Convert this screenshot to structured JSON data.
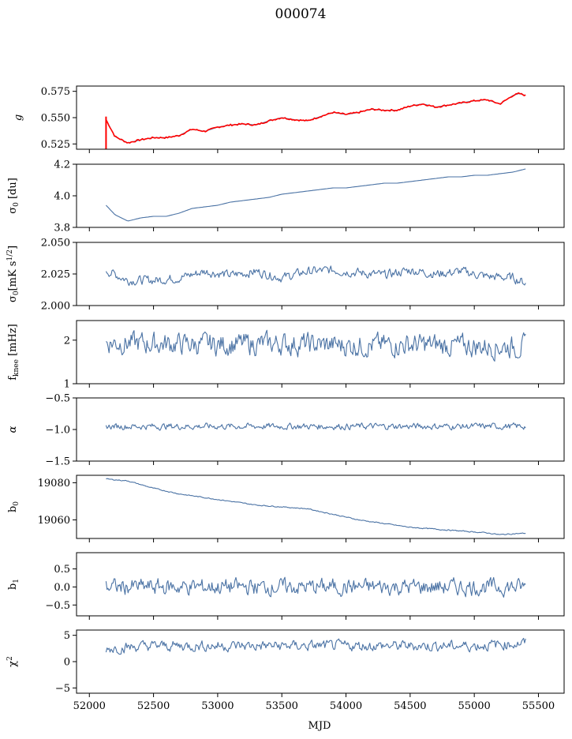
{
  "figure": {
    "title": "000074",
    "xlabel": "MJD"
  },
  "chart_data": {
    "type": "line",
    "title": "000074",
    "xlabel": "MJD",
    "xlim": [
      51900,
      55700
    ],
    "xticks": [
      52000,
      52500,
      53000,
      53500,
      54000,
      54500,
      55000,
      55500
    ],
    "x_range": [
      52130,
      55400
    ],
    "colors": {
      "series": "#4a72a4",
      "overlay": "#ff0000"
    },
    "panels": [
      {
        "id": "g",
        "ylabel": "g",
        "ylim": [
          0.52,
          0.58
        ],
        "yticks": [
          0.525,
          0.55,
          0.575
        ],
        "ytick_labels": [
          "0.525",
          "0.550",
          "0.575"
        ],
        "x": [
          52130,
          52200,
          52300,
          52400,
          52500,
          52600,
          52700,
          52800,
          52900,
          53000,
          53100,
          53200,
          53300,
          53400,
          53500,
          53600,
          53700,
          53800,
          53900,
          54000,
          54100,
          54200,
          54300,
          54400,
          54500,
          54600,
          54700,
          54800,
          54900,
          55000,
          55100,
          55150,
          55200,
          55250,
          55300,
          55350,
          55400
        ],
        "y": [
          0.548,
          0.532,
          0.526,
          0.529,
          0.531,
          0.531,
          0.533,
          0.539,
          0.537,
          0.541,
          0.543,
          0.544,
          0.543,
          0.547,
          0.55,
          0.548,
          0.547,
          0.551,
          0.555,
          0.553,
          0.555,
          0.558,
          0.557,
          0.557,
          0.561,
          0.563,
          0.56,
          0.562,
          0.564,
          0.566,
          0.567,
          0.565,
          0.563,
          0.567,
          0.571,
          0.573,
          0.571
        ],
        "overlay_color": "red",
        "series": "blue with red overlay"
      },
      {
        "id": "sigma0",
        "ylabel": "σ0 [du]",
        "ylim": [
          3.8,
          4.2
        ],
        "yticks": [
          3.8,
          4.0,
          4.2
        ],
        "ytick_labels": [
          "3.8",
          "4.0",
          "4.2"
        ],
        "x": [
          52130,
          52200,
          52300,
          52400,
          52500,
          52600,
          52700,
          52800,
          52900,
          53000,
          53100,
          53200,
          53300,
          53400,
          53500,
          53600,
          53700,
          53800,
          53900,
          54000,
          54100,
          54200,
          54300,
          54400,
          54500,
          54600,
          54700,
          54800,
          54900,
          55000,
          55100,
          55200,
          55300,
          55400
        ],
        "y": [
          3.94,
          3.88,
          3.84,
          3.86,
          3.87,
          3.87,
          3.89,
          3.92,
          3.93,
          3.94,
          3.96,
          3.97,
          3.98,
          3.99,
          4.01,
          4.02,
          4.03,
          4.04,
          4.05,
          4.05,
          4.06,
          4.07,
          4.08,
          4.08,
          4.09,
          4.1,
          4.11,
          4.12,
          4.12,
          4.13,
          4.13,
          4.14,
          4.15,
          4.17
        ]
      },
      {
        "id": "sigma0_rate",
        "ylabel": "σ0[mK s^1/2]",
        "ylim": [
          2.0,
          2.05
        ],
        "yticks": [
          2.0,
          2.025,
          2.05
        ],
        "ytick_labels": [
          "2.000",
          "2.025",
          "2.050"
        ],
        "x": [
          52130,
          52300,
          52500,
          52700,
          52900,
          53100,
          53300,
          53500,
          53700,
          53900,
          54100,
          54300,
          54500,
          54700,
          54900,
          55100,
          55300,
          55400
        ],
        "y": [
          2.028,
          2.02,
          2.02,
          2.022,
          2.027,
          2.024,
          2.027,
          2.022,
          2.027,
          2.028,
          2.026,
          2.024,
          2.028,
          2.025,
          2.027,
          2.023,
          2.022,
          2.018
        ],
        "noise": 0.004
      },
      {
        "id": "fknee",
        "ylabel": "fknee [mHz]",
        "ylim": [
          1,
          2.45
        ],
        "yticks": [
          1,
          2
        ],
        "ytick_labels": [
          "1",
          "2"
        ],
        "x": [
          52130,
          52500,
          53000,
          53500,
          54000,
          54500,
          55000,
          55400
        ],
        "y": [
          1.95,
          1.92,
          1.9,
          1.92,
          1.88,
          1.9,
          1.86,
          1.85
        ],
        "noise": 0.28
      },
      {
        "id": "alpha",
        "ylabel": "α",
        "ylim": [
          -1.5,
          -0.5
        ],
        "yticks": [
          -1.5,
          -1.0,
          -0.5
        ],
        "ytick_labels": [
          "−1.5",
          "−1.0",
          "−0.5"
        ],
        "x": [
          52130,
          53000,
          54000,
          55000,
          55400
        ],
        "y": [
          -0.95,
          -0.95,
          -0.95,
          -0.95,
          -0.95
        ],
        "noise": 0.055
      },
      {
        "id": "b0",
        "ylabel": "b0",
        "ylim": [
          19050,
          19084
        ],
        "yticks": [
          19060,
          19080
        ],
        "ytick_labels": [
          "19060",
          "19080"
        ],
        "x": [
          52130,
          52300,
          52500,
          52700,
          52900,
          53100,
          53300,
          53500,
          53700,
          53900,
          54100,
          54300,
          54500,
          54700,
          54900,
          55100,
          55200,
          55300,
          55400
        ],
        "y": [
          19082,
          19081,
          19077,
          19074,
          19072,
          19070,
          19068,
          19067,
          19066,
          19063,
          19060,
          19058,
          19056,
          19055,
          19054,
          19053,
          19052,
          19052.5,
          19052.8
        ],
        "noise": 0.3
      },
      {
        "id": "b1",
        "ylabel": "b1",
        "ylim": [
          -0.8,
          0.95
        ],
        "yticks": [
          -0.5,
          0.0,
          0.5
        ],
        "ytick_labels": [
          "−0.5",
          "0.0",
          "0.5"
        ],
        "x": [
          52130,
          53000,
          54000,
          55000,
          55400
        ],
        "y": [
          0.0,
          0.0,
          0.0,
          0.0,
          0.0
        ],
        "noise": 0.25
      },
      {
        "id": "chi2",
        "ylabel": "χ2",
        "ylim": [
          -6,
          6
        ],
        "yticks": [
          -5,
          0,
          5
        ],
        "ytick_labels": [
          "−5",
          "0",
          "5"
        ],
        "x": [
          52130,
          52500,
          53000,
          53500,
          54000,
          54500,
          55000,
          55400
        ],
        "y": [
          2.5,
          3.0,
          3.0,
          3.0,
          3.0,
          3.0,
          3.0,
          3.5
        ],
        "noise": 1.1
      }
    ]
  }
}
